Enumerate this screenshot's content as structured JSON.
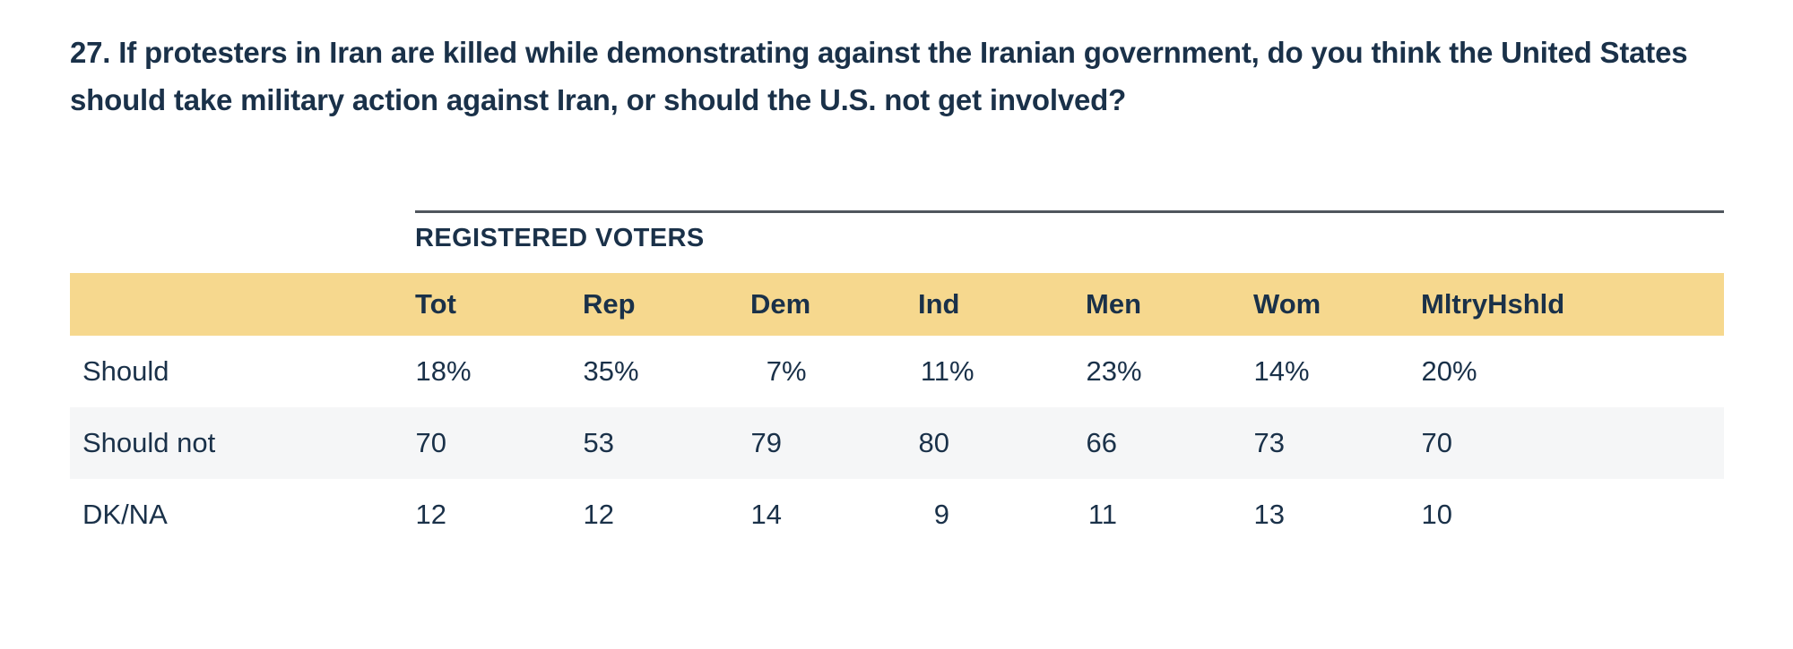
{
  "page": {
    "question": "27. If protesters in Iran are killed while demonstrating against the Iranian government, do you think the United States should take military action against Iran, or should the U.S. not get involved?"
  },
  "chart_data": {
    "type": "table",
    "group_header": "REGISTERED VOTERS",
    "columns": [
      "Tot",
      "Rep",
      "Dem",
      "Ind",
      "Men",
      "Wom",
      "MltryHshld"
    ],
    "rows": [
      {
        "label": "Should",
        "values": [
          "18%",
          "35%",
          "7%",
          "11%",
          "23%",
          "14%",
          "20%"
        ]
      },
      {
        "label": "Should not",
        "values": [
          "70",
          "53",
          "79",
          "80",
          "66",
          "73",
          "70"
        ]
      },
      {
        "label": "DK/NA",
        "values": [
          "12",
          "12",
          "14",
          "9",
          "11",
          "13",
          "10"
        ]
      }
    ]
  },
  "colors": {
    "text": "#1a3149",
    "header_band": "#f6d88e",
    "alt_row": "#f5f6f7",
    "rule": "#50565d",
    "background": "#ffffff"
  }
}
